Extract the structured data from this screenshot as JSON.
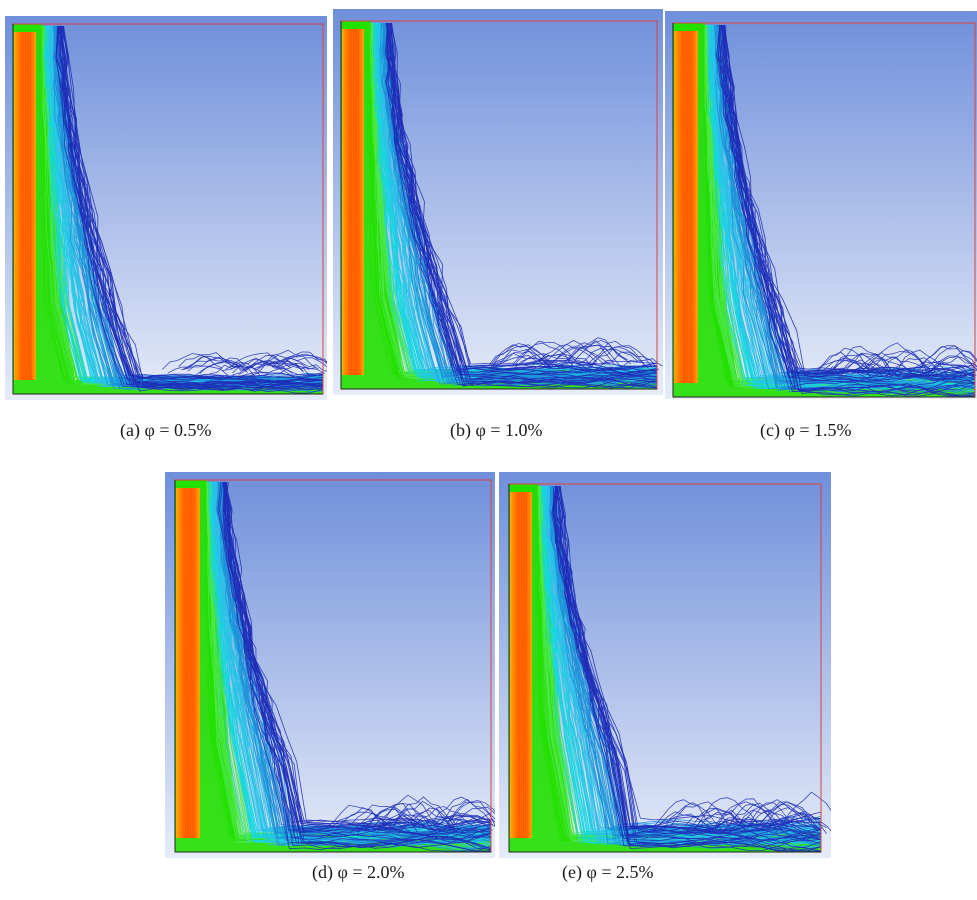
{
  "figure": {
    "panels": [
      {
        "id": "a",
        "caption": "(a) φ = 0.5%",
        "phi_percent": 0.5
      },
      {
        "id": "b",
        "caption": "(b) φ = 1.0%",
        "phi_percent": 1.0
      },
      {
        "id": "c",
        "caption": "(c) φ = 1.5%",
        "phi_percent": 1.5
      },
      {
        "id": "d",
        "caption": "(d) φ = 2.0%",
        "phi_percent": 2.0
      },
      {
        "id": "e",
        "caption": "(e) φ = 2.5%",
        "phi_percent": 2.5
      }
    ],
    "colors": {
      "background_top": "#6f8fdb",
      "background_bottom": "#e6ecf8",
      "border": "#e0403a",
      "jet_core": "#ff5a00",
      "jet_edge": "#ffb000",
      "green": "#22e000",
      "cyan": "#14d6e0",
      "blue": "#1f2fb8"
    }
  }
}
